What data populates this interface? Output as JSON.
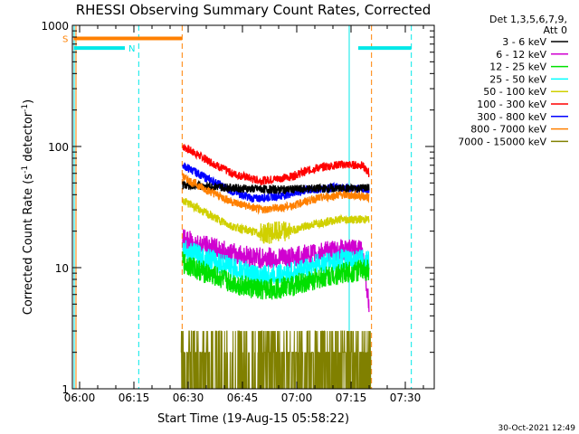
{
  "footer": {
    "timestamp": "30-Oct-2021 12:49"
  },
  "chart_data": {
    "type": "line",
    "title": "RHESSI Observing Summary Count Rates, Corrected",
    "xlabel": "Start Time (19-Aug-15 05:58:22)",
    "ylabel_main": "Corrected Count Rate (s",
    "ylabel_sup1": "-1",
    "ylabel_mid": " detector",
    "ylabel_sup2": "-1",
    "ylabel_end": ")",
    "y_scale": "log",
    "ylim": [
      1,
      1000
    ],
    "xlim": [
      "05:58:00",
      "07:38:00"
    ],
    "x_ticks": [
      "06:00",
      "06:15",
      "06:30",
      "06:45",
      "07:00",
      "07:15",
      "07:30"
    ],
    "y_ticks": [
      "1",
      "10",
      "100",
      "1000"
    ],
    "legend": {
      "position": "top-right",
      "header": [
        "Det 1,3,5,6,7,9,",
        "Att 0"
      ],
      "entries": [
        {
          "name": "3 - 6 keV",
          "color": "#000000"
        },
        {
          "name": "6 - 12 keV",
          "color": "#d000d0"
        },
        {
          "name": "12 - 25 keV",
          "color": "#00e000"
        },
        {
          "name": "25 - 50 keV",
          "color": "#00ffff"
        },
        {
          "name": "50 - 100 keV",
          "color": "#d0d000"
        },
        {
          "name": "100 - 300 keV",
          "color": "#ff0000"
        },
        {
          "name": "300 - 800 keV",
          "color": "#0000ff"
        },
        {
          "name": "800 - 7000 keV",
          "color": "#ff8000"
        },
        {
          "name": "7000 - 15000 keV",
          "color": "#808000"
        }
      ]
    },
    "flags": [
      {
        "label": "S",
        "color": "#ff8000",
        "y": 780,
        "spans": [
          [
            "05:58:22",
            "06:28:20"
          ]
        ]
      },
      {
        "label": "N",
        "color": "#00e8e8",
        "y": 650,
        "spans": [
          [
            "05:58:22",
            "06:12:30"
          ],
          [
            "07:17:00",
            "07:31:40"
          ]
        ]
      }
    ],
    "vlines": [
      {
        "x": "05:59:00",
        "color": "#ff8000",
        "style": "solid"
      },
      {
        "x": "05:58:30",
        "color": "#00e8e8",
        "style": "solid"
      },
      {
        "x": "06:16:20",
        "color": "#00e8e8",
        "style": "dashed"
      },
      {
        "x": "06:28:20",
        "color": "#ff8000",
        "style": "dashed"
      },
      {
        "x": "07:14:30",
        "color": "#00e8e8",
        "style": "solid"
      },
      {
        "x": "07:20:40",
        "color": "#ff8000",
        "style": "dashed"
      },
      {
        "x": "07:31:40",
        "color": "#00e8e8",
        "style": "dashed"
      }
    ],
    "series": [
      {
        "color": "#ff0000",
        "x": [
          "06:28:30",
          "06:35:00",
          "06:42:00",
          "06:50:00",
          "06:58:00",
          "07:05:00",
          "07:12:00",
          "07:18:00",
          "07:20:00"
        ],
        "y": [
          100,
          78,
          60,
          52,
          56,
          66,
          71,
          70,
          60
        ]
      },
      {
        "color": "#0000ff",
        "x": [
          "06:28:30",
          "06:35:00",
          "06:42:00",
          "06:48:00",
          "06:55:00",
          "07:02:00",
          "07:10:00",
          "07:16:00",
          "07:20:00"
        ],
        "y": [
          70,
          55,
          43,
          37,
          39,
          43,
          46,
          45,
          44
        ]
      },
      {
        "color": "#000000",
        "x": [
          "06:28:30",
          "06:35:00",
          "06:45:00",
          "06:55:00",
          "07:05:00",
          "07:15:00",
          "07:20:00"
        ],
        "y": [
          48,
          47,
          45,
          44,
          45,
          45,
          46
        ]
      },
      {
        "color": "#ff8000",
        "x": [
          "06:28:30",
          "06:35:00",
          "06:42:00",
          "06:50:00",
          "06:58:00",
          "07:05:00",
          "07:12:00",
          "07:18:00",
          "07:20:00"
        ],
        "y": [
          56,
          44,
          35,
          30,
          32,
          37,
          40,
          39,
          38
        ]
      },
      {
        "color": "#d0d000",
        "x": [
          "06:28:30",
          "06:35:00",
          "06:42:00",
          "06:50:00",
          "06:58:00",
          "07:05:00",
          "07:12:00",
          "07:18:00",
          "07:20:00"
        ],
        "y": [
          36,
          28,
          22,
          19,
          20,
          23,
          25,
          25,
          25
        ]
      },
      {
        "color": "#d000d0",
        "x": [
          "06:28:30",
          "06:35:00",
          "06:42:00",
          "06:50:00",
          "06:58:00",
          "07:05:00",
          "07:12:00",
          "07:18:00",
          "07:20:00"
        ],
        "y": [
          17,
          15,
          13,
          12,
          12,
          13,
          14,
          14,
          5
        ]
      },
      {
        "color": "#00ffff",
        "x": [
          "06:28:30",
          "06:35:00",
          "06:42:00",
          "06:50:00",
          "06:58:00",
          "07:05:00",
          "07:12:00",
          "07:18:00",
          "07:20:00"
        ],
        "y": [
          14,
          12,
          10,
          8.5,
          9,
          10.5,
          11.5,
          11.5,
          11
        ]
      },
      {
        "color": "#00e000",
        "x": [
          "06:28:30",
          "06:35:00",
          "06:42:00",
          "06:50:00",
          "06:58:00",
          "07:05:00",
          "07:12:00",
          "07:18:00",
          "07:20:00"
        ],
        "y": [
          11,
          9,
          7.5,
          6.5,
          7,
          8,
          9,
          9.5,
          9.5
        ]
      },
      {
        "color": "#808000",
        "x": [
          "06:28:00",
          "06:31:00",
          "06:34:00",
          "06:40:00",
          "06:55:00",
          "07:02:00",
          "07:10:00",
          "07:15:00",
          "07:20:30"
        ],
        "y": [
          2.5,
          2,
          1.5,
          1,
          1.5,
          2,
          2,
          1.6,
          1.5
        ]
      }
    ]
  }
}
